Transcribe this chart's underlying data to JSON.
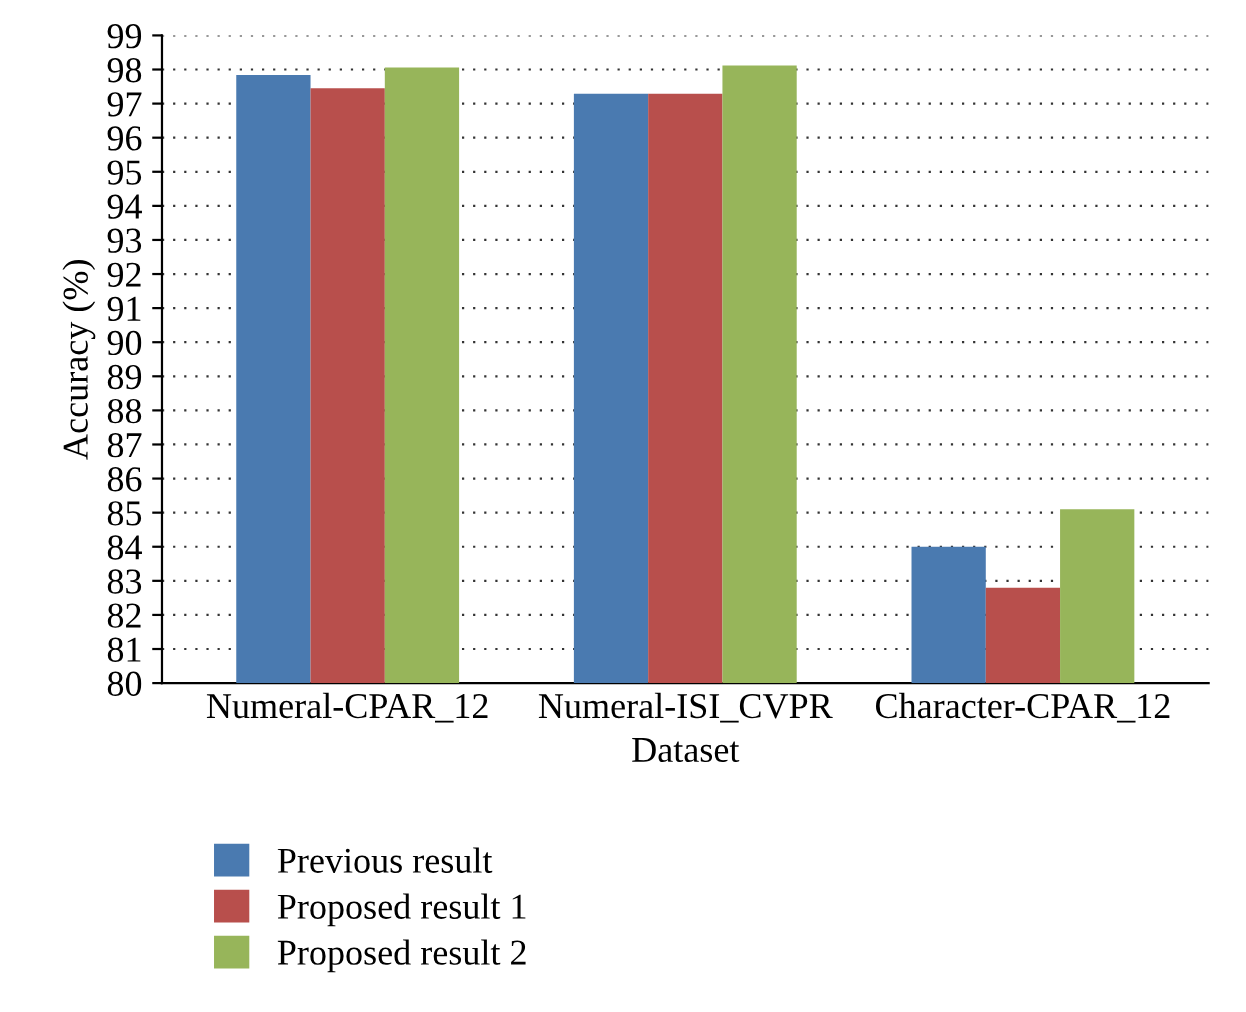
{
  "chart_data": {
    "type": "bar",
    "xlabel": "Dataset",
    "ylabel": "Accuracy (%)",
    "categories": [
      "Numeral-CPAR_12",
      "Numeral-ISI_CVPR",
      "Character-CPAR_12"
    ],
    "series": [
      {
        "name": "Previous result",
        "color": "#4a7ab0",
        "values": [
          97.84,
          97.29,
          84.0
        ]
      },
      {
        "name": "Proposed result 1",
        "color": "#b84f4c",
        "values": [
          97.45,
          97.29,
          82.8
        ]
      },
      {
        "name": "Proposed result 2",
        "color": "#97b55a",
        "values": [
          98.06,
          98.12,
          85.1
        ]
      }
    ],
    "ylim": [
      80,
      99
    ],
    "yticks": [
      80,
      81,
      82,
      83,
      84,
      85,
      86,
      87,
      88,
      89,
      90,
      91,
      92,
      93,
      94,
      95,
      96,
      97,
      98,
      99
    ],
    "grid": true,
    "legend": "bottom"
  }
}
